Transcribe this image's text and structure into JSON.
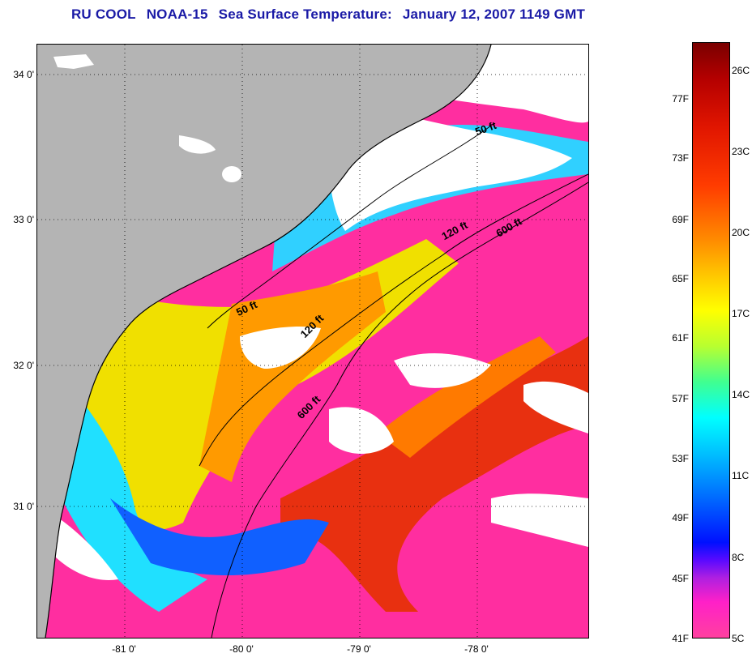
{
  "title": {
    "org": "RU COOL",
    "satellite": "NOAA-15",
    "product": "Sea Surface Temperature:",
    "date": "January 12, 2007 1149 GMT"
  },
  "map": {
    "latitude_labels": [
      "34 0'",
      "33 0'",
      "32 0'",
      "31 0'"
    ],
    "longitude_labels": [
      "-81 0'",
      "-80 0'",
      "-79 0'",
      "-78 0'"
    ],
    "depth_contour_labels": [
      "50 ft",
      "120 ft",
      "600 ft",
      "50 ft",
      "120 ft",
      "600 ft"
    ],
    "colors": {
      "land": "#b4b4b4",
      "cloud": "#ffffff",
      "contour": "#000000"
    }
  },
  "colorbar": {
    "fahrenheit_labels": [
      "77F",
      "73F",
      "69F",
      "65F",
      "61F",
      "57F",
      "53F",
      "49F",
      "45F",
      "41F"
    ],
    "celsius_labels": [
      "26C",
      "23C",
      "20C",
      "17C",
      "14C",
      "11C",
      "8C",
      "5C"
    ]
  }
}
